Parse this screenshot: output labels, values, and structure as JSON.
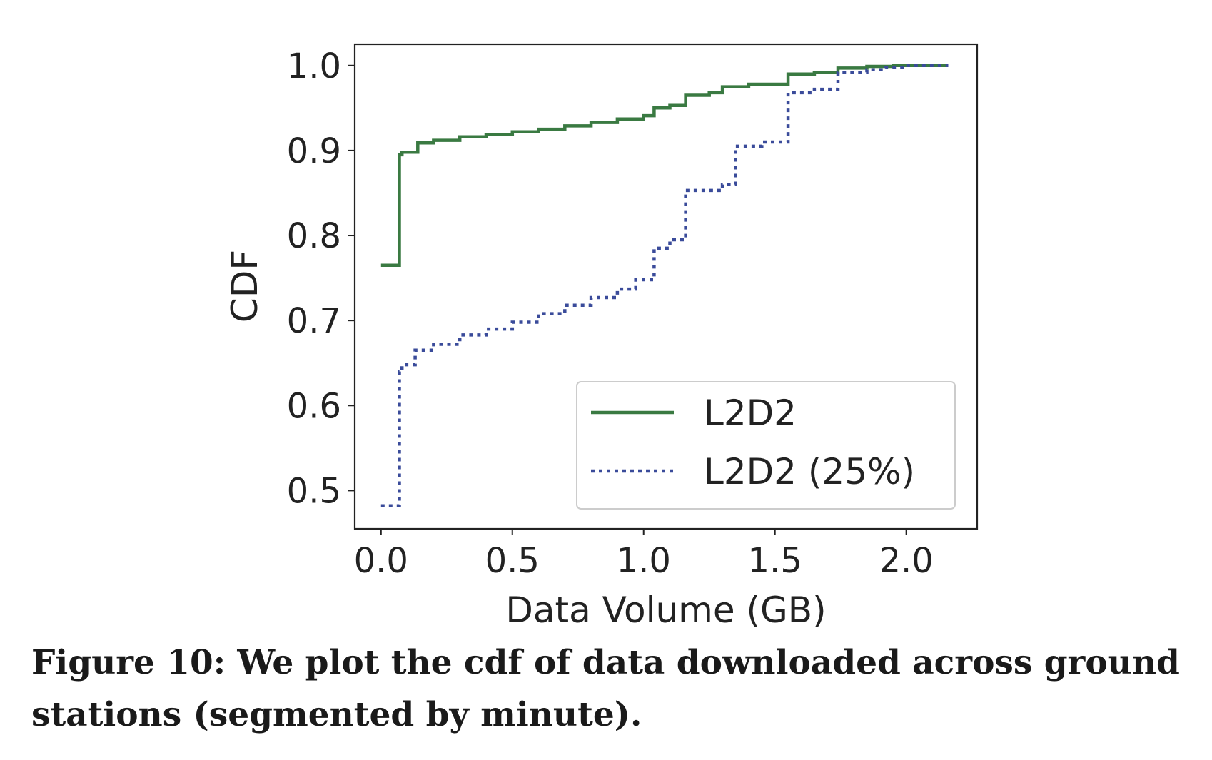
{
  "caption": "Figure 10: We plot the cdf of data downloaded across ground stations (segmented by minute).",
  "chart_data": {
    "type": "line",
    "title": "",
    "xlabel": "Data Volume (GB)",
    "ylabel": "CDF",
    "xlim": [
      -0.1,
      2.27
    ],
    "ylim": [
      0.455,
      1.025
    ],
    "xticks": [
      0.0,
      0.5,
      1.0,
      1.5,
      2.0
    ],
    "xtick_labels": [
      "0.0",
      "0.5",
      "1.0",
      "1.5",
      "2.0"
    ],
    "yticks": [
      0.5,
      0.6,
      0.7,
      0.8,
      0.9,
      1.0
    ],
    "ytick_labels": [
      "0.5",
      "0.6",
      "0.7",
      "0.8",
      "0.9",
      "1.0"
    ],
    "grid": false,
    "legend_position": "lower-right",
    "series": [
      {
        "name": "L2D2",
        "color": "#3a7a42",
        "style": "solid",
        "step": true,
        "x": [
          0.0,
          0.07,
          0.08,
          0.14,
          0.2,
          0.3,
          0.4,
          0.5,
          0.6,
          0.7,
          0.8,
          0.9,
          1.0,
          1.04,
          1.1,
          1.16,
          1.25,
          1.3,
          1.4,
          1.55,
          1.65,
          1.74,
          1.85,
          1.95,
          2.05,
          2.16
        ],
        "y": [
          0.765,
          0.895,
          0.898,
          0.909,
          0.912,
          0.916,
          0.919,
          0.922,
          0.925,
          0.929,
          0.933,
          0.937,
          0.941,
          0.95,
          0.953,
          0.965,
          0.968,
          0.975,
          0.978,
          0.99,
          0.992,
          0.997,
          0.999,
          1.0,
          1.0,
          1.0
        ]
      },
      {
        "name": "L2D2 (25%)",
        "color": "#3a4b9a",
        "style": "dotted",
        "step": true,
        "x": [
          0.0,
          0.07,
          0.08,
          0.13,
          0.2,
          0.3,
          0.4,
          0.5,
          0.6,
          0.7,
          0.8,
          0.9,
          0.97,
          1.04,
          1.1,
          1.16,
          1.3,
          1.35,
          1.45,
          1.55,
          1.65,
          1.74,
          1.85,
          1.92,
          2.0,
          2.16
        ],
        "y": [
          0.482,
          0.64,
          0.648,
          0.665,
          0.672,
          0.683,
          0.69,
          0.698,
          0.708,
          0.718,
          0.727,
          0.737,
          0.748,
          0.785,
          0.795,
          0.853,
          0.86,
          0.905,
          0.91,
          0.968,
          0.972,
          0.992,
          0.995,
          0.998,
          1.0,
          1.0
        ]
      }
    ]
  }
}
